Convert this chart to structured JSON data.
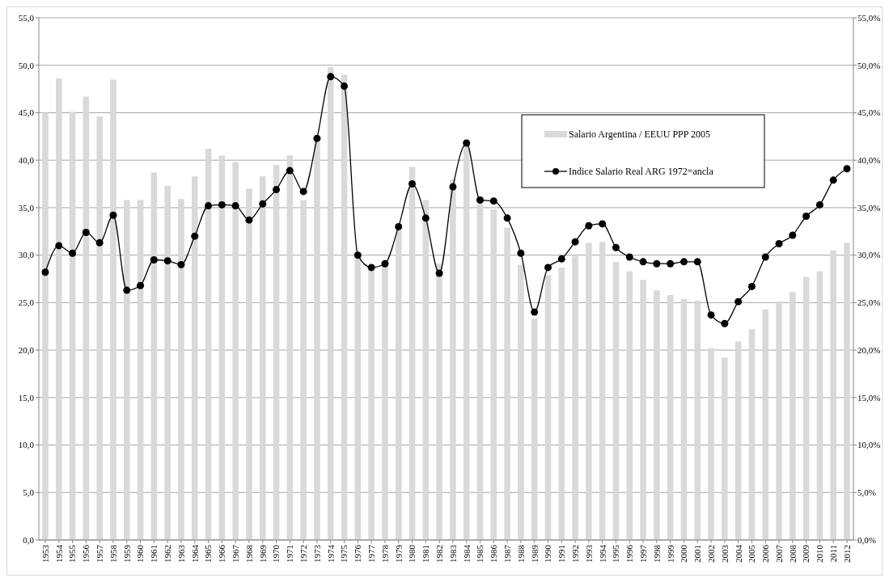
{
  "chart_data": {
    "type": "bar",
    "categories": [
      "1953",
      "1954",
      "1955",
      "1956",
      "1957",
      "1958",
      "1959",
      "1960",
      "1961",
      "1962",
      "1963",
      "1964",
      "1965",
      "1966",
      "1967",
      "1968",
      "1969",
      "1970",
      "1971",
      "1972",
      "1973",
      "1974",
      "1975",
      "1976",
      "1977",
      "1978",
      "1979",
      "1980",
      "1981",
      "1982",
      "1983",
      "1984",
      "1985",
      "1986",
      "1987",
      "1988",
      "1989",
      "1990",
      "1991",
      "1992",
      "1993",
      "1994",
      "1995",
      "1996",
      "1997",
      "1998",
      "1999",
      "2000",
      "2001",
      "2002",
      "2003",
      "2004",
      "2005",
      "2006",
      "2007",
      "2008",
      "2009",
      "2010",
      "2011",
      "2012"
    ],
    "series": [
      {
        "name": "Salario Argentina / EEUU PPP 2005",
        "color": "#d9d9d9",
        "values": [
          45.0,
          48.6,
          45.1,
          46.7,
          44.6,
          48.5,
          35.8,
          35.8,
          38.7,
          37.3,
          35.9,
          38.3,
          41.2,
          40.5,
          39.8,
          37.0,
          38.3,
          39.5,
          40.5,
          35.8,
          42.0,
          49.8,
          49.0,
          29.9,
          28.7,
          29.0,
          33.2,
          39.3,
          35.8,
          29.1,
          38.0,
          41.5,
          35.4,
          34.8,
          32.9,
          29.0,
          23.3,
          27.9,
          28.7,
          29.9,
          31.3,
          31.4,
          29.3,
          28.3,
          27.4,
          26.3,
          25.8,
          25.4,
          25.2,
          20.2,
          19.2,
          20.9,
          22.2,
          24.3,
          25.1,
          26.1,
          27.7,
          28.3,
          30.5,
          31.3
        ]
      },
      {
        "name": "Indice Salario Real ARG 1972=ancla",
        "type": "line",
        "axis": "y2",
        "color": "#000000",
        "marker": "circle",
        "line_style": "solid",
        "values": [
          28.2,
          31.0,
          30.2,
          32.4,
          31.3,
          34.2,
          26.3,
          26.8,
          29.5,
          29.4,
          29.0,
          32.0,
          35.2,
          35.3,
          35.2,
          33.7,
          35.4,
          36.9,
          38.9,
          36.7,
          42.3,
          48.8,
          47.8,
          30.0,
          28.7,
          29.1,
          33.0,
          37.5,
          33.9,
          28.1,
          37.2,
          41.8,
          35.8,
          35.7,
          33.9,
          30.2,
          24.0,
          28.7,
          29.6,
          31.4,
          33.1,
          33.3,
          30.8,
          29.8,
          29.3,
          29.1,
          29.1,
          29.3,
          29.3,
          23.7,
          22.8,
          25.1,
          26.7,
          29.8,
          31.2,
          32.1,
          34.1,
          35.3,
          37.9,
          39.1
        ]
      }
    ],
    "ylim": [
      0,
      55
    ],
    "yticks": [
      {
        "value": 0,
        "label": "0,0"
      },
      {
        "value": 5,
        "label": "5,0"
      },
      {
        "value": 10,
        "label": "10,0"
      },
      {
        "value": 15,
        "label": "15,0"
      },
      {
        "value": 20,
        "label": "20,0"
      },
      {
        "value": 25,
        "label": "25,0"
      },
      {
        "value": 30,
        "label": "30,0"
      },
      {
        "value": 35,
        "label": "35,0"
      },
      {
        "value": 40,
        "label": "40,0"
      },
      {
        "value": 45,
        "label": "45,0"
      },
      {
        "value": 50,
        "label": "50,0"
      },
      {
        "value": 55,
        "label": "55,0"
      }
    ],
    "y2lim": [
      0,
      55
    ],
    "y2ticks": [
      {
        "value": 0,
        "label": "0,0%"
      },
      {
        "value": 5,
        "label": "5,0%"
      },
      {
        "value": 10,
        "label": "10,0%"
      },
      {
        "value": 15,
        "label": "15,0%"
      },
      {
        "value": 20,
        "label": "20,0%"
      },
      {
        "value": 25,
        "label": "25,0%"
      },
      {
        "value": 30,
        "label": "30,0%"
      },
      {
        "value": 35,
        "label": "35,0%"
      },
      {
        "value": 40,
        "label": "40,0%"
      },
      {
        "value": 45,
        "label": "45,0%"
      },
      {
        "value": 50,
        "label": "50,0%"
      },
      {
        "value": 55,
        "label": "55,0%"
      }
    ],
    "grid": "y",
    "legend": "top right"
  }
}
